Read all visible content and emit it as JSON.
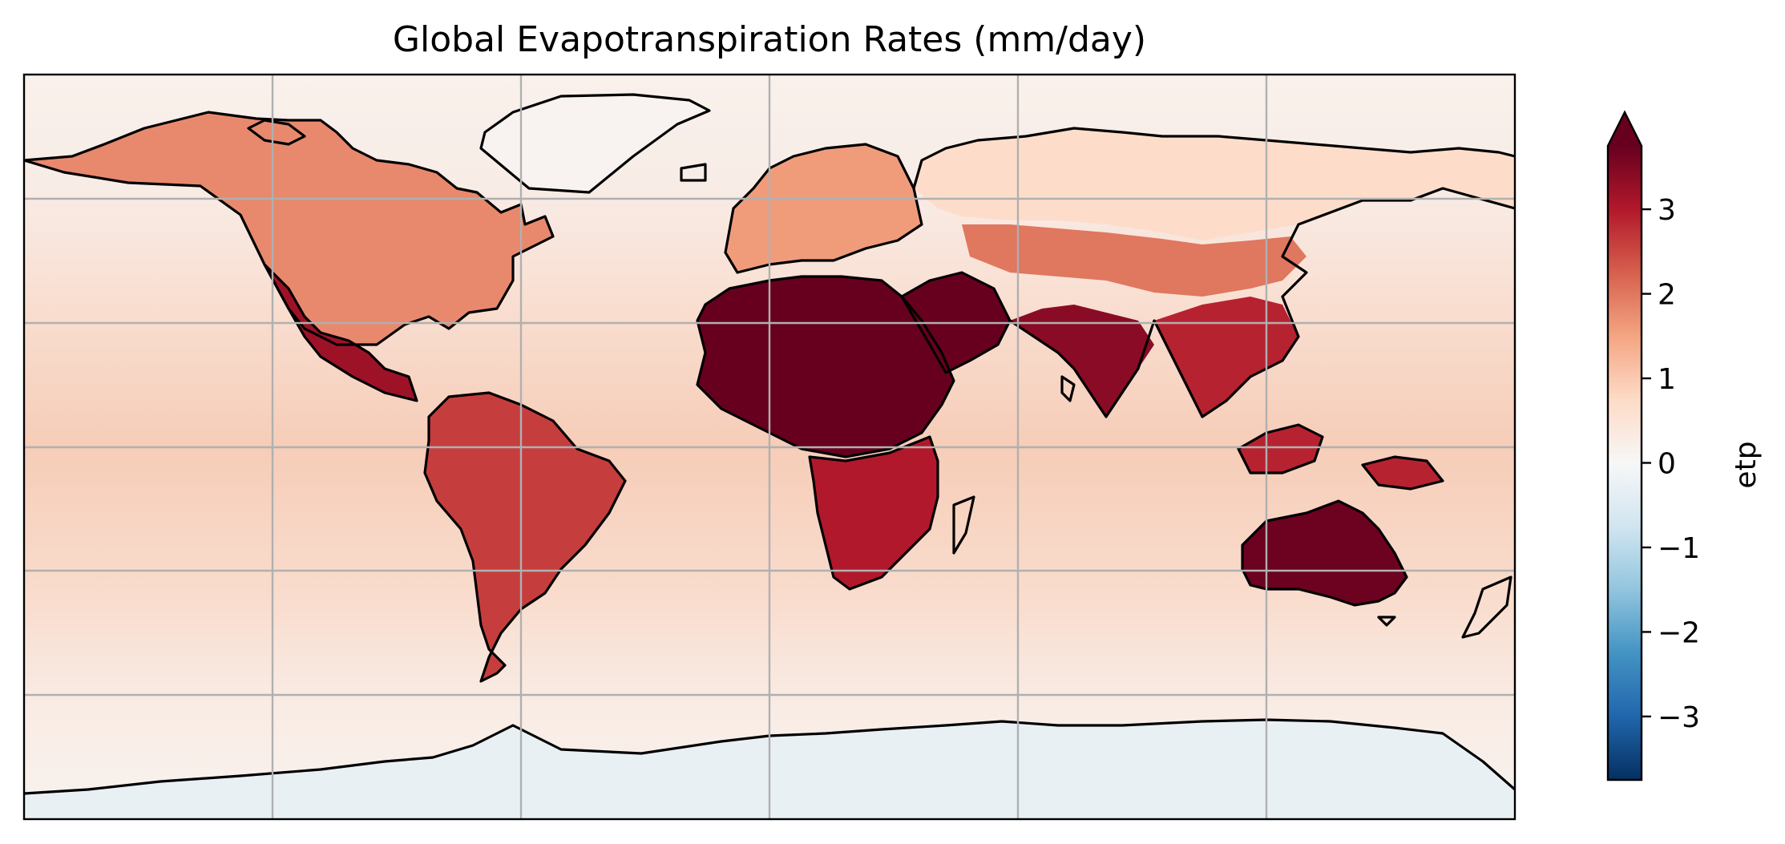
{
  "map": {
    "title": "Global Evapotranspiration Rates (mm/day)",
    "projection": "PlateCarree",
    "lon_range": [
      -180,
      180
    ],
    "lat_range": [
      -90,
      90
    ],
    "gridlines": {
      "shown": true,
      "color": "#b0b0b0",
      "lon_step": 60,
      "lat_step": 30
    },
    "ocean_color": "#f8ddd0",
    "polar_ocean_color": "#f9f0eb",
    "coastline_color": "#000000",
    "regions": [
      {
        "name": "North America",
        "value": 1.8
      },
      {
        "name": "Mexico",
        "value": 3.2
      },
      {
        "name": "South America",
        "value": 2.6
      },
      {
        "name": "Greenland",
        "value": 0.1
      },
      {
        "name": "Europe",
        "value": 1.6
      },
      {
        "name": "Sahara",
        "value": 3.8
      },
      {
        "name": "Arabian Peninsula",
        "value": 3.8
      },
      {
        "name": "Southern Africa",
        "value": 3.0
      },
      {
        "name": "Northern Asia",
        "value": 0.7
      },
      {
        "name": "Central Asia",
        "value": 2.0
      },
      {
        "name": "South Asia",
        "value": 3.4
      },
      {
        "name": "Southeast Asia",
        "value": 2.9
      },
      {
        "name": "Australia",
        "value": 3.7
      },
      {
        "name": "Antarctica",
        "value": -0.3
      }
    ]
  },
  "colorbar": {
    "label": "etp",
    "cmap": "RdBu_r",
    "vmin": -3.75,
    "vmax": 3.75,
    "extend": "max",
    "ticks": [
      {
        "value": 3,
        "label": "3"
      },
      {
        "value": 2,
        "label": "2"
      },
      {
        "value": 1,
        "label": "1"
      },
      {
        "value": 0,
        "label": "0"
      },
      {
        "value": -1,
        "label": "−1"
      },
      {
        "value": -2,
        "label": "−2"
      },
      {
        "value": -3,
        "label": "−3"
      }
    ]
  }
}
